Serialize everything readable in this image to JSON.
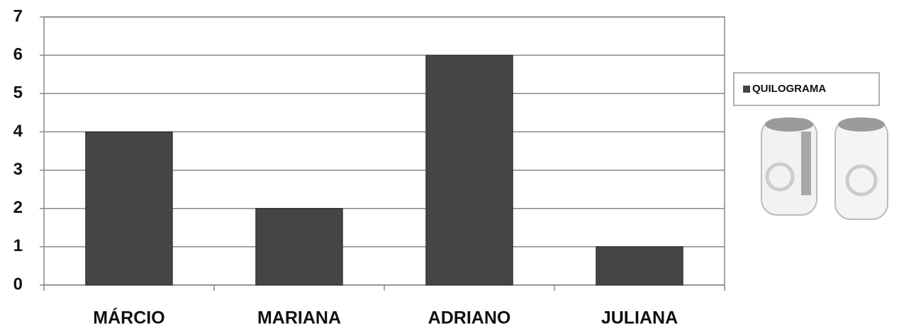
{
  "chart_data": {
    "type": "bar",
    "categories": [
      "MÁRCIO",
      "MARIANA",
      "ADRIANO",
      "JULIANA"
    ],
    "series": [
      {
        "name": "QUILOGRAMA",
        "color": "#454545",
        "values": [
          4,
          2,
          6,
          1
        ]
      }
    ],
    "ylim": [
      0,
      7
    ],
    "yticks": [
      0,
      1,
      2,
      3,
      4,
      5,
      6,
      7
    ],
    "grid": true,
    "legend": "right"
  }
}
